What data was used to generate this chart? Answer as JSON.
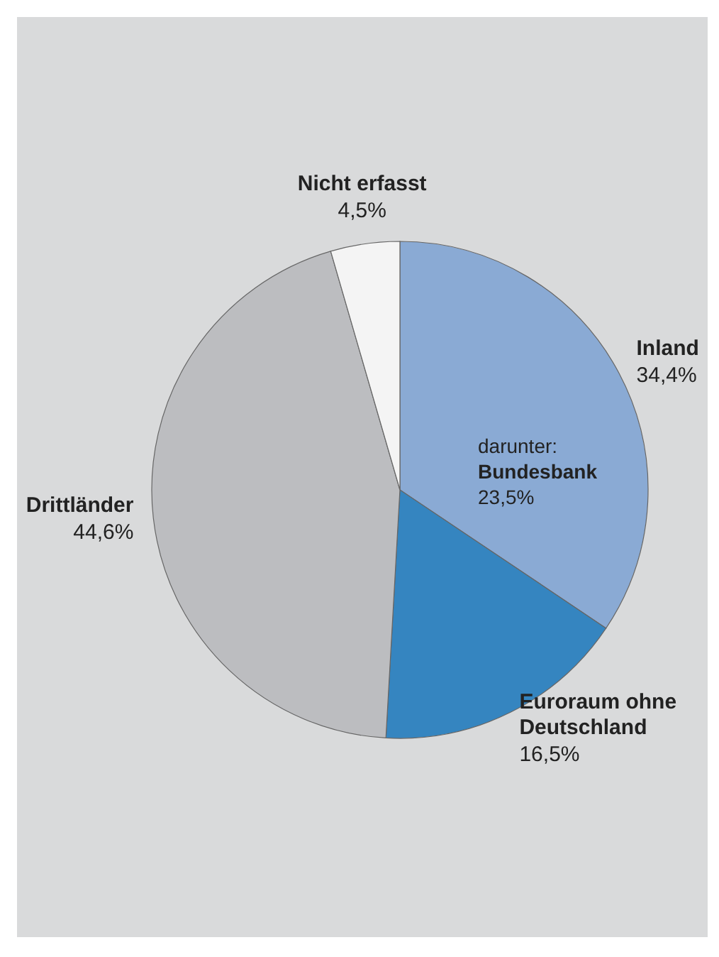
{
  "chart_data": {
    "type": "pie",
    "categories": [
      "Inland",
      "Euroraum ohne Deutschland",
      "Drittländer",
      "Nicht erfasst"
    ],
    "values": [
      34.4,
      16.5,
      44.6,
      4.5
    ],
    "colors": [
      "#8aaad4",
      "#3585c0",
      "#bcbdc0",
      "#f4f4f4"
    ],
    "value_labels": [
      "34,4%",
      "16,5%",
      "44,6%",
      "4,5%"
    ],
    "annotations": [
      "darunter:",
      "Bundesbank",
      "23,5%"
    ]
  }
}
